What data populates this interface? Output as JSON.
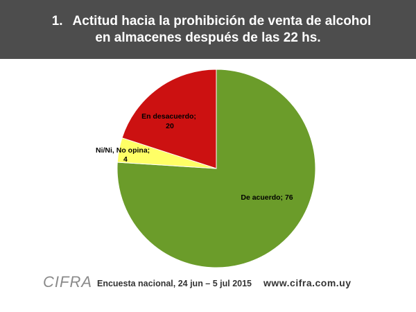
{
  "header": {
    "number": "1.",
    "title_line1": "Actitud hacia la prohibición de venta de alcohol",
    "title_line2": "en almacenes después de las 22 hs."
  },
  "chart_data": {
    "type": "pie",
    "slices": [
      {
        "name": "De acuerdo",
        "value": 76,
        "color": "#6b9c2a",
        "label_line1": "De acuerdo; 76",
        "label_line2": ""
      },
      {
        "name": "Ni/Ni, No opina",
        "value": 4,
        "color": "#ffff66",
        "label_line1": "Ni/Ni, No opina;",
        "label_line2": "4"
      },
      {
        "name": "En desacuerdo",
        "value": 20,
        "color": "#cc1111",
        "label_line1": "En desacuerdo;",
        "label_line2": "20"
      }
    ],
    "start_angle_deg": 0,
    "direction": "clockwise",
    "legend": "none"
  },
  "footer": {
    "logo": "CIFRA",
    "survey": "Encuesta nacional,  24 jun – 5 jul 2015",
    "website": "www.cifra.com.uy"
  }
}
